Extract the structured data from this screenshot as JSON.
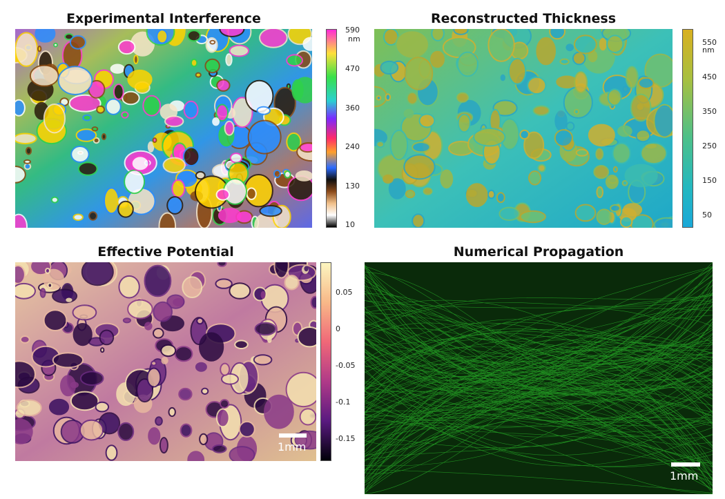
{
  "panels": {
    "interference": {
      "title": "Experimental Interference",
      "colorbar_unit": "nm",
      "colorbar_ticks": [
        "590",
        "470",
        "360",
        "240",
        "130",
        "10"
      ]
    },
    "thickness": {
      "title": "Reconstructed Thickness",
      "colorbar_unit": "nm",
      "colorbar_ticks": [
        "550",
        "450",
        "350",
        "250",
        "150",
        "50"
      ]
    },
    "potential": {
      "title": "Effective Potential",
      "colorbar_ticks": [
        "0.05",
        "0",
        "-0.05",
        "-0.1",
        "-0.15"
      ],
      "scalebar_label": "1mm"
    },
    "propagation": {
      "title": "Numerical Propagation",
      "scalebar_label": "1mm"
    }
  }
}
